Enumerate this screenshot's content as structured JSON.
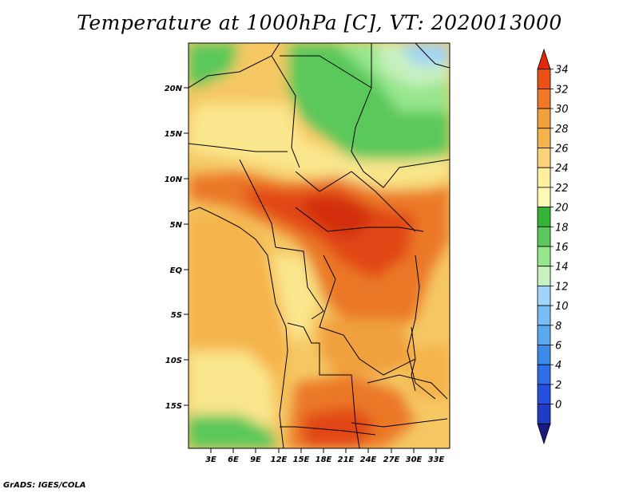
{
  "title": "Temperature at 1000hPa [C], VT: 2020013000",
  "credit": "GrADS: IGES/COLA",
  "map": {
    "lat_ticks": [
      "20N",
      "15N",
      "10N",
      "5N",
      "EQ",
      "5S",
      "10S",
      "15S"
    ],
    "lon_ticks": [
      "3E",
      "6E",
      "9E",
      "12E",
      "15E",
      "18E",
      "21E",
      "24E",
      "27E",
      "30E",
      "33E"
    ],
    "colors": {
      "c0": "#1a1a80",
      "c2": "#1e3cc8",
      "c4": "#2350e0",
      "c6": "#2e6ee6",
      "c8": "#3a8ce8",
      "c10": "#5aa8f0",
      "c12": "#78bef5",
      "c14": "#a0d4f8",
      "c16": "#c8f0c0",
      "c18": "#96e68c",
      "c20": "#5ac85a",
      "c22": "#36b436",
      "c24": "#fff8b4",
      "c26": "#fae68c",
      "c28": "#f5c864",
      "c30": "#f0a03c",
      "c32": "#eb7828",
      "c34": "#e14614",
      "c36": "#d22d0a"
    }
  },
  "colorbar": {
    "labels": [
      "34",
      "32",
      "30",
      "28",
      "26",
      "24",
      "22",
      "20",
      "18",
      "16",
      "14",
      "12",
      "10",
      "8",
      "6",
      "4",
      "2",
      "0"
    ],
    "colors": [
      "#e1280a",
      "#eb5014",
      "#f07828",
      "#f0a03c",
      "#f5b44b",
      "#fad278",
      "#fff0a0",
      "#fff8b4",
      "#36b436",
      "#5ac85a",
      "#96e68c",
      "#c8f0c0",
      "#a0d4f8",
      "#78bef5",
      "#5aa8f0",
      "#3a8ce8",
      "#2e6ee6",
      "#2350e0",
      "#1e3cc8",
      "#1a1a80"
    ]
  }
}
